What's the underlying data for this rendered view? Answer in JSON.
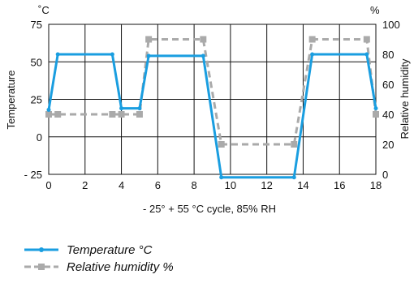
{
  "chart_data": {
    "type": "line",
    "title": "",
    "xlabel": "- 25° + 55 °C cycle, 85% RH",
    "y_unit_left": "˚C",
    "y_unit_right": "%",
    "ylabel_left": "Temperature",
    "ylabel_right": "Relative humidity",
    "xlim": [
      0,
      18
    ],
    "ylim_left": [
      -25,
      75
    ],
    "ylim_right": [
      0,
      100
    ],
    "x_ticks": [
      "0",
      "2",
      "4",
      "6",
      "8",
      "10",
      "12",
      "14",
      "16",
      "18"
    ],
    "y_ticks_left": [
      "- 25",
      "0",
      "25",
      "50",
      "75"
    ],
    "y_ticks_right": [
      "0",
      "20",
      "40",
      "60",
      "80",
      "100"
    ],
    "grid": true,
    "legend_position": "bottom-left",
    "series": [
      {
        "name": "Temperature °C",
        "axis": "left",
        "color": "#1a9ee0",
        "style": "solid",
        "x": [
          0,
          0.5,
          3.5,
          4,
          5,
          5.5,
          8.5,
          9.5,
          13.5,
          14.5,
          17.5,
          18
        ],
        "y": [
          18,
          55,
          55,
          19,
          19,
          54,
          54,
          -27,
          -27,
          55,
          55,
          19
        ]
      },
      {
        "name": "Relative humidity %",
        "axis": "right",
        "color": "#aaaaaa",
        "style": "dashed",
        "x": [
          0,
          0.5,
          3.5,
          4,
          5,
          5.5,
          8.5,
          9.5,
          13.5,
          14.5,
          17.5,
          18
        ],
        "y": [
          40,
          40,
          40,
          40,
          40,
          90,
          90,
          20,
          20,
          90,
          90,
          40
        ]
      }
    ]
  }
}
